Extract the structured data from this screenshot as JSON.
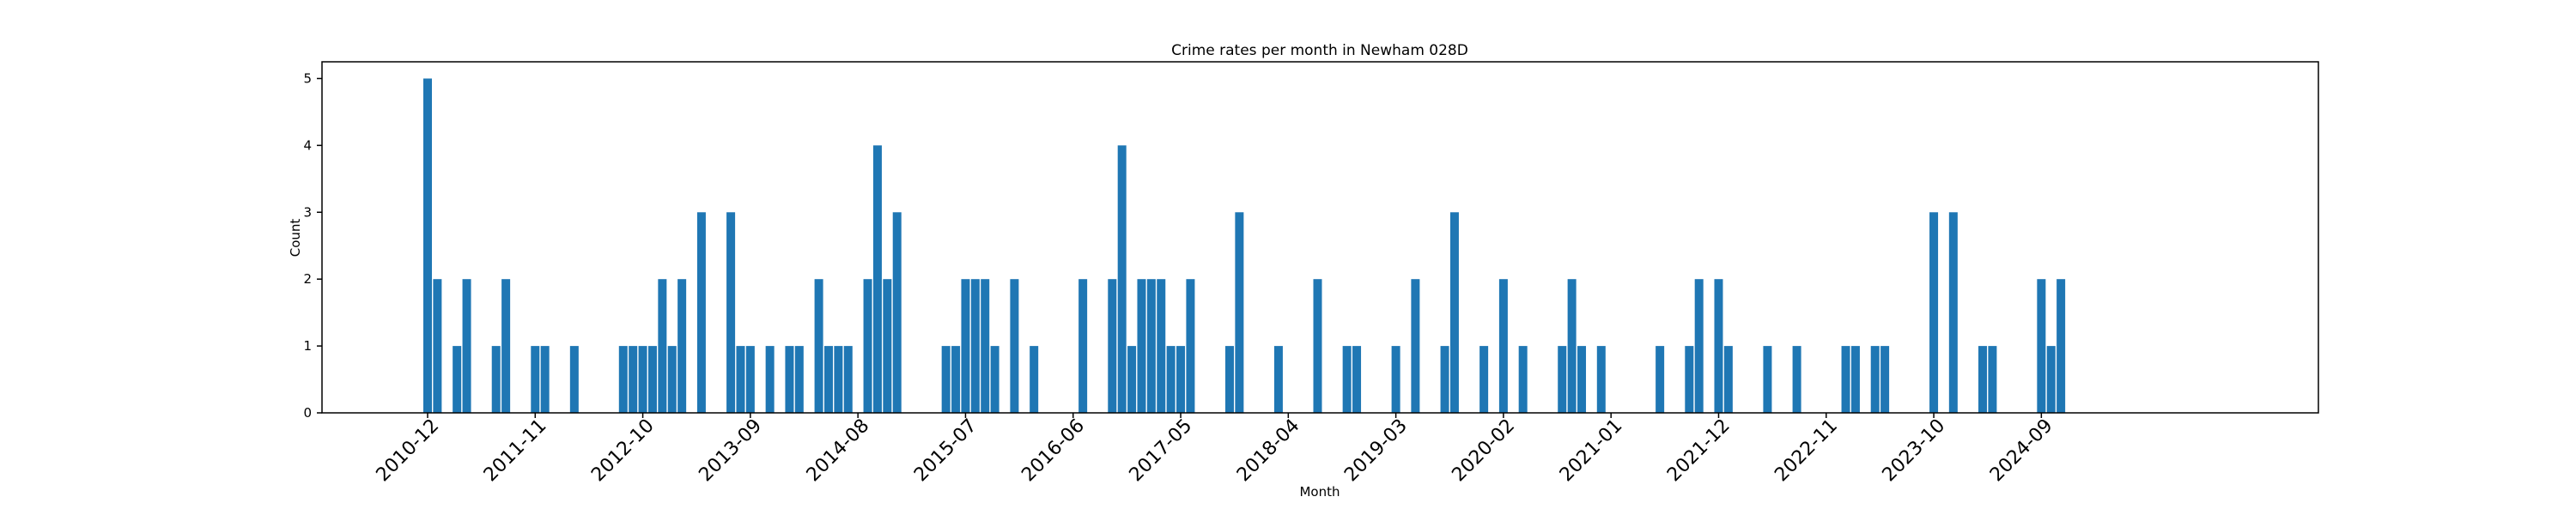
{
  "chart_data": {
    "type": "bar",
    "title": "Crime rates per month in Newham 028D",
    "xlabel": "Month",
    "ylabel": "Count",
    "ylim": [
      0,
      5.25
    ],
    "yticks": [
      0,
      1,
      2,
      3,
      4,
      5
    ],
    "xtick_labels": [
      "2010-12",
      "2011-11",
      "2012-10",
      "2013-09",
      "2014-08",
      "2015-07",
      "2016-06",
      "2017-05",
      "2018-04",
      "2019-03",
      "2020-02",
      "2021-01",
      "2021-12",
      "2022-11",
      "2023-10",
      "2024-09"
    ],
    "grid": false,
    "categories": [
      "2010-12",
      "2011-01",
      "2011-03",
      "2011-04",
      "2011-07",
      "2011-08",
      "2011-11",
      "2011-12",
      "2012-03",
      "2012-08",
      "2012-09",
      "2012-10",
      "2012-11",
      "2012-12",
      "2013-01",
      "2013-02",
      "2013-04",
      "2013-07",
      "2013-08",
      "2013-09",
      "2013-11",
      "2014-01",
      "2014-02",
      "2014-04",
      "2014-05",
      "2014-06",
      "2014-07",
      "2014-09",
      "2014-10",
      "2014-11",
      "2014-12",
      "2015-05",
      "2015-06",
      "2015-07",
      "2015-08",
      "2015-09",
      "2015-10",
      "2015-12",
      "2016-02",
      "2016-07",
      "2016-10",
      "2016-11",
      "2016-12",
      "2017-01",
      "2017-02",
      "2017-03",
      "2017-04",
      "2017-05",
      "2017-06",
      "2017-10",
      "2017-11",
      "2018-03",
      "2018-07",
      "2018-10",
      "2018-11",
      "2019-03",
      "2019-05",
      "2019-08",
      "2019-09",
      "2019-12",
      "2020-02",
      "2020-04",
      "2020-08",
      "2020-09",
      "2020-10",
      "2020-12",
      "2021-06",
      "2021-09",
      "2021-10",
      "2021-12",
      "2022-05",
      "2022-08",
      "2022-01",
      "2023-01",
      "2023-02",
      "2023-04",
      "2023-05",
      "2023-10",
      "2023-12",
      "2024-03",
      "2024-04",
      "2024-09",
      "2024-10",
      "2024-11"
    ],
    "values": [
      5,
      2,
      1,
      2,
      1,
      2,
      1,
      1,
      1,
      1,
      1,
      1,
      1,
      2,
      1,
      2,
      3,
      3,
      1,
      1,
      1,
      1,
      1,
      2,
      1,
      1,
      1,
      2,
      4,
      2,
      3,
      1,
      1,
      2,
      2,
      2,
      1,
      2,
      1,
      2,
      2,
      4,
      1,
      2,
      2,
      2,
      1,
      1,
      2,
      1,
      3,
      1,
      2,
      1,
      1,
      1,
      2,
      1,
      3,
      1,
      2,
      1,
      1,
      2,
      1,
      1,
      1,
      1,
      2,
      2,
      1,
      1,
      1,
      1,
      1,
      1,
      1,
      3,
      3,
      1,
      1,
      2,
      1,
      2
    ]
  }
}
